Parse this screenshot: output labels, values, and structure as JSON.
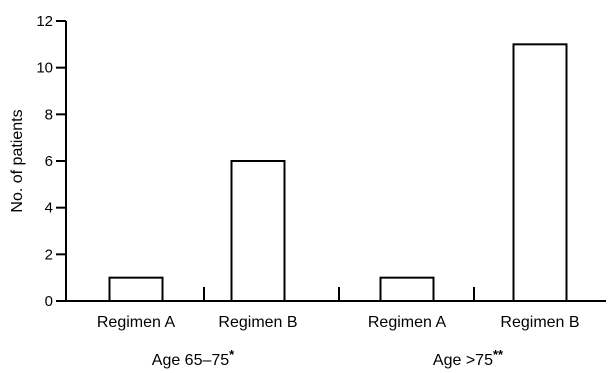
{
  "chart_data": {
    "type": "bar",
    "ylabel": "No. of patients",
    "ylim": [
      0,
      12
    ],
    "yticks": [
      0,
      2,
      4,
      6,
      8,
      10,
      12
    ],
    "groups": [
      {
        "label": "Age 65–75",
        "marker": "*",
        "categories": [
          "Regimen A",
          "Regimen B"
        ],
        "values": [
          1,
          6
        ]
      },
      {
        "label": "Age >75",
        "marker": "**",
        "categories": [
          "Regimen A",
          "Regimen B"
        ],
        "values": [
          1,
          11
        ]
      }
    ]
  }
}
